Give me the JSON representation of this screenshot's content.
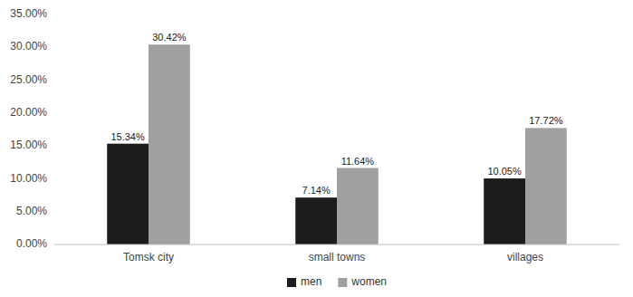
{
  "chart_data": {
    "type": "bar",
    "categories": [
      "Tomsk city",
      "small towns",
      "villages"
    ],
    "series": [
      {
        "name": "men",
        "color": "#1c1c1c",
        "values": [
          15.34,
          7.14,
          10.05
        ],
        "value_labels": [
          "15.34%",
          "7.14%",
          "10.05%"
        ]
      },
      {
        "name": "women",
        "color": "#a0a0a0",
        "values": [
          30.42,
          11.64,
          17.72
        ],
        "value_labels": [
          "30.42%",
          "11.64%",
          "17.72%"
        ]
      }
    ],
    "ylim": [
      0,
      35
    ],
    "yticks": [
      {
        "value": 0,
        "label": "0.00%"
      },
      {
        "value": 5,
        "label": "5.00%"
      },
      {
        "value": 10,
        "label": "10.00%"
      },
      {
        "value": 15,
        "label": "15.00%"
      },
      {
        "value": 20,
        "label": "20.00%"
      },
      {
        "value": 25,
        "label": "25.00%"
      },
      {
        "value": 30,
        "label": "30.00%"
      },
      {
        "value": 35,
        "label": "35.00%"
      }
    ],
    "grid": false,
    "legend": "bottom",
    "data_labels": true
  }
}
